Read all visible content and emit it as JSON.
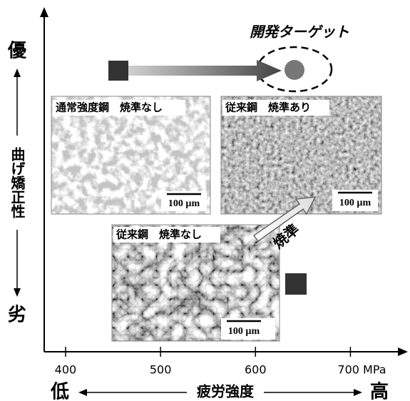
{
  "target_label": "開発ターゲット",
  "y_axis": {
    "label": "曲げ矯正性",
    "top": "優",
    "bottom": "劣"
  },
  "x_axis": {
    "label": "疲労強度",
    "left": "低",
    "right": "高",
    "xlim": [
      377.5,
      759
    ],
    "xticks": [
      400,
      500,
      600,
      {
        "value": 700,
        "label": "700 MPa"
      }
    ]
  },
  "micrographs": [
    {
      "label": "通常強度鋼　焼準なし",
      "scale": "100 µm"
    },
    {
      "label": "従来鋼　焼準あり",
      "scale": "100 µm"
    },
    {
      "label": "従来鋼　焼準なし",
      "scale": "100 µm"
    }
  ],
  "arrow_label": "焼準"
}
